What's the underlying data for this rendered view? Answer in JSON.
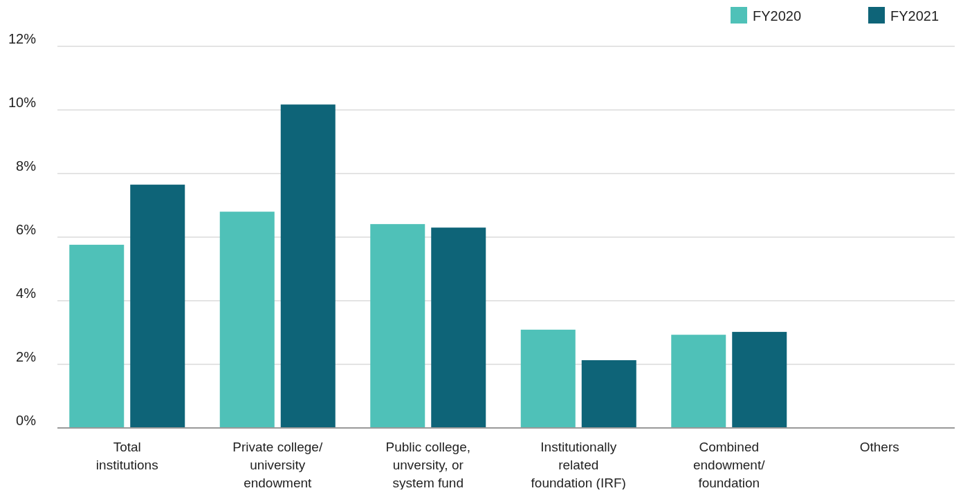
{
  "chart_data": {
    "type": "bar",
    "categories": [
      "Total institutions",
      "Private college/ university endowment",
      "Public college, unversity, or system fund",
      "Institutionally related foundation (IRF)",
      "Combined endowment/ foundation",
      "Others"
    ],
    "series": [
      {
        "name": "FY2020",
        "color": "#4fc1b8",
        "values": [
          5.76,
          6.8,
          6.41,
          3.09,
          2.93,
          0
        ]
      },
      {
        "name": "FY2021",
        "color": "#0e6478",
        "values": [
          7.65,
          10.17,
          6.3,
          2.13,
          3.02,
          0
        ]
      }
    ],
    "ylim": [
      0,
      12
    ],
    "yticks": [
      {
        "value": 0,
        "label": "0%"
      },
      {
        "value": 2,
        "label": "2%"
      },
      {
        "value": 4,
        "label": "4%"
      },
      {
        "value": 6,
        "label": "6%"
      },
      {
        "value": 8,
        "label": "8%"
      },
      {
        "value": 10,
        "label": "10%"
      },
      {
        "value": 12,
        "label": "12%"
      }
    ],
    "grid": "y",
    "legend": "top right"
  }
}
